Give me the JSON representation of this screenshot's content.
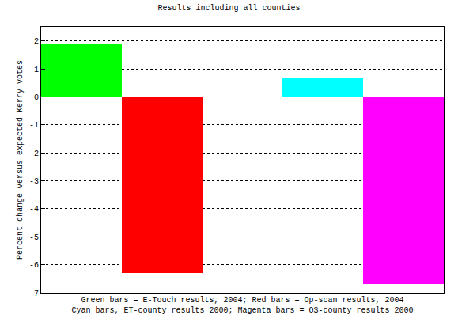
{
  "chart_data": {
    "type": "bar",
    "title": "Results including all counties",
    "ylabel": "Percent change versus expected Kerry votes",
    "xlabel": "Green bars = E-Touch results, 2004; Red bars = Op-scan results, 2004\nCyan bars, ET-county results 2000; Magenta bars = OS-county results 2000",
    "x": [
      1,
      2,
      4,
      5
    ],
    "values": [
      1.9,
      -6.3,
      0.7,
      -6.7
    ],
    "colors": [
      "#00ff00",
      "#ff0000",
      "#00ffff",
      "#ff00ff"
    ],
    "xlim": [
      0.5,
      5.5
    ],
    "ylim": [
      -7,
      2.5
    ],
    "yticks": [
      -7,
      -6,
      -5,
      -4,
      -3,
      -2,
      -1,
      0,
      1,
      2
    ],
    "grid": true,
    "tick_labels": "y"
  }
}
